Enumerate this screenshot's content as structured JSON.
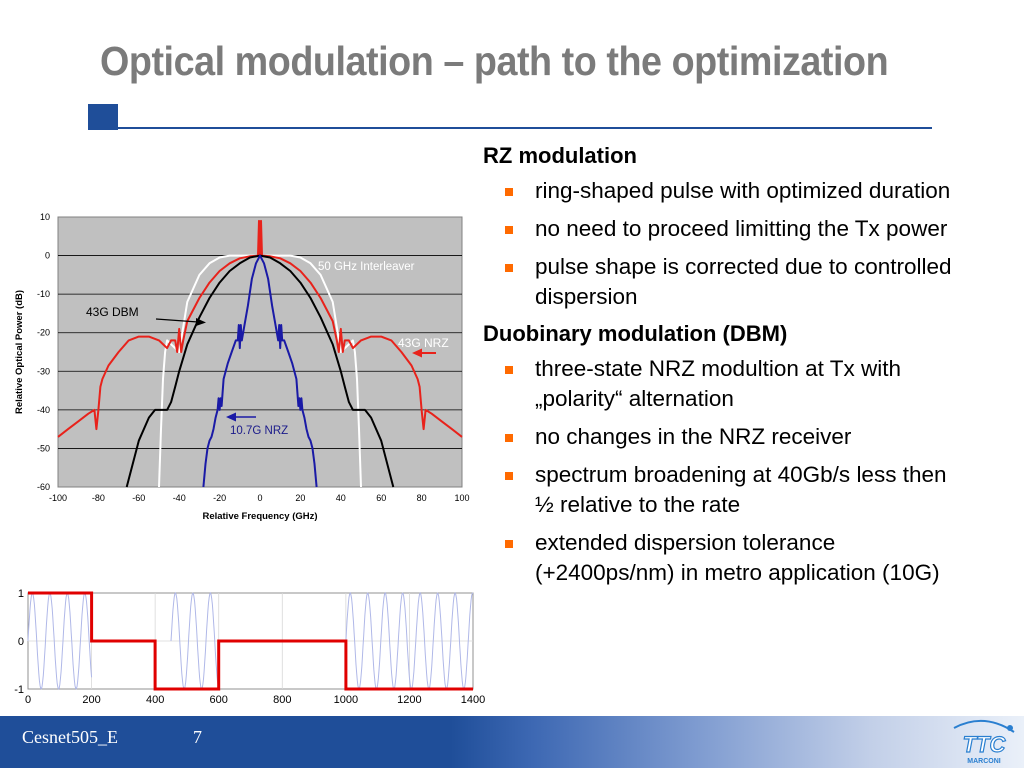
{
  "slide": {
    "title": "Optical modulation – path to the optimization",
    "footer_label": "Cesnet505_E",
    "page_number": "7",
    "logo_text": "MARCONI"
  },
  "content": {
    "sections": [
      {
        "heading": "RZ modulation",
        "bullets": [
          "ring-shaped pulse with optimized duration",
          "no need to proceed limitting the Tx power",
          "pulse shape is corrected due to controlled dispersion"
        ]
      },
      {
        "heading": "Duobinary modulation (DBM)",
        "bullets": [
          "three-state NRZ modultion at Tx with „polarity“ alternation",
          "no changes in the NRZ receiver",
          "spectrum broadening at 40Gb/s less then ½ relative to the rate",
          "extended dispersion tolerance (+2400ps/nm) in metro application (10G)"
        ]
      }
    ]
  },
  "chart_data": [
    {
      "type": "line",
      "xlabel": "Relative Frequency (GHz)",
      "ylabel": "Relative Optical Power (dB)",
      "xlim": [
        -100,
        100
      ],
      "ylim": [
        -60,
        10
      ],
      "x_ticks": [
        "-100",
        "-80",
        "-60",
        "-40",
        "-20",
        "0",
        "20",
        "40",
        "60",
        "80",
        "100"
      ],
      "y_ticks": [
        "10",
        "0",
        "-10",
        "-20",
        "-30",
        "-40",
        "-50",
        "-60"
      ],
      "grid": true,
      "annotations": [
        "50 GHz Interleaver",
        "43G DBM",
        "43G NRZ",
        "10.7G NRZ"
      ],
      "series": [
        {
          "name": "50 GHz Interleaver",
          "color": "#ffffff",
          "x": [
            -50,
            -49,
            -48,
            -47,
            -46,
            -44,
            -40,
            -36,
            -30,
            -25,
            -20,
            -15,
            -10,
            -5,
            0,
            5,
            10,
            15,
            20,
            25,
            30,
            36,
            40,
            44,
            46,
            47,
            48,
            49,
            50
          ],
          "y": [
            -60,
            -45,
            -32,
            -25,
            -22,
            -23,
            -25,
            -12,
            -5,
            -2,
            -0.5,
            0,
            0,
            0,
            0,
            0,
            0,
            0,
            -0.5,
            -2,
            -5,
            -12,
            -25,
            -23,
            -22,
            -25,
            -32,
            -45,
            -60
          ]
        },
        {
          "name": "43G NRZ",
          "color": "#e8221b",
          "x": [
            -100,
            -95,
            -90,
            -85,
            -82,
            -81,
            -80,
            -79,
            -78,
            -75,
            -70,
            -65,
            -60,
            -55,
            -50,
            -46,
            -44,
            -42,
            -41,
            -40,
            -39,
            -38,
            -36,
            -33,
            -30,
            -25,
            -20,
            -15,
            -10,
            -5,
            -1,
            -0.5,
            0,
            0.5,
            1,
            5,
            10,
            15,
            20,
            25,
            30,
            33,
            36,
            38,
            39,
            40,
            41,
            42,
            44,
            46,
            50,
            55,
            60,
            65,
            70,
            75,
            78,
            79,
            80,
            81,
            82,
            85,
            90,
            95,
            100
          ],
          "y": [
            -47,
            -45,
            -43,
            -41,
            -40,
            -45,
            -40,
            -34,
            -32,
            -28.5,
            -25,
            -22,
            -21,
            -21,
            -22,
            -24,
            -22,
            -22,
            -25,
            -19,
            -25,
            -22,
            -17,
            -14,
            -11,
            -7,
            -4,
            -2,
            -0.7,
            -0.2,
            0,
            9,
            0,
            9,
            0,
            -0.2,
            -0.7,
            -2,
            -4,
            -7,
            -11,
            -14,
            -17,
            -22,
            -25,
            -19,
            -25,
            -22,
            -22,
            -24,
            -22,
            -21,
            -21,
            -22,
            -25,
            -28.5,
            -32,
            -34,
            -40,
            -45,
            -40,
            -41,
            -43,
            -45,
            -47
          ]
        },
        {
          "name": "43G DBM",
          "color": "#000000",
          "x": [
            -66,
            -60,
            -55,
            -52,
            -50,
            -48,
            -46,
            -44,
            -42,
            -40,
            -36,
            -30,
            -25,
            -20,
            -15,
            -10,
            -5,
            0,
            5,
            10,
            15,
            20,
            25,
            30,
            36,
            40,
            42,
            44,
            46,
            48,
            50,
            52,
            55,
            60,
            66
          ],
          "y": [
            -60,
            -48,
            -42,
            -40,
            -40,
            -40,
            -40,
            -38,
            -34,
            -30,
            -23,
            -16,
            -11,
            -7,
            -4,
            -2,
            -0.5,
            0,
            -0.5,
            -2,
            -4,
            -7,
            -11,
            -16,
            -23,
            -30,
            -34,
            -38,
            -40,
            -40,
            -40,
            -40,
            -42,
            -48,
            -60
          ]
        },
        {
          "name": "10.7G NRZ",
          "color": "#1a1aa6",
          "x": [
            -28,
            -27,
            -26,
            -25,
            -24,
            -23,
            -22,
            -21,
            -20.5,
            -20,
            -19.5,
            -19,
            -18,
            -16,
            -14,
            -12,
            -11,
            -10.5,
            -10,
            -9.5,
            -9,
            -8,
            -6,
            -4,
            -2,
            0,
            2,
            4,
            6,
            8,
            9,
            9.5,
            10,
            10.5,
            11,
            12,
            14,
            16,
            18,
            19,
            19.5,
            20,
            20.5,
            21,
            22,
            23,
            24,
            25,
            26,
            27,
            28
          ],
          "y": [
            -60,
            -54,
            -50,
            -48,
            -47,
            -45,
            -42,
            -40,
            -37,
            -40,
            -37,
            -39,
            -32,
            -28,
            -25,
            -22,
            -22,
            -18,
            -24,
            -18,
            -22,
            -19,
            -13,
            -6,
            -2,
            0,
            -2,
            -6,
            -13,
            -19,
            -22,
            -18,
            -24,
            -18,
            -22,
            -22,
            -25,
            -28,
            -32,
            -39,
            -37,
            -40,
            -37,
            -40,
            -42,
            -45,
            -47,
            -48,
            -50,
            -54,
            -60
          ]
        }
      ]
    },
    {
      "type": "line",
      "xlim": [
        0,
        1400
      ],
      "ylim": [
        -1,
        1
      ],
      "x_ticks": [
        "0",
        "200",
        "400",
        "600",
        "800",
        "1000",
        "1200",
        "1400"
      ],
      "y_ticks": [
        "1",
        "0",
        "-1"
      ],
      "grid": true,
      "series": [
        {
          "color": "#e00000",
          "step": true,
          "x": [
            0,
            200,
            200,
            400,
            400,
            600,
            600,
            1000,
            1000,
            1400
          ],
          "y": [
            1,
            1,
            0,
            0,
            -1,
            -1,
            0,
            0,
            -1,
            -1
          ]
        },
        {
          "color": "#b0b8e8",
          "type": "sine_bursts",
          "period": 55,
          "bursts": [
            [
              0,
              200
            ],
            [
              450,
              600
            ],
            [
              1000,
              1400
            ]
          ]
        }
      ]
    }
  ]
}
